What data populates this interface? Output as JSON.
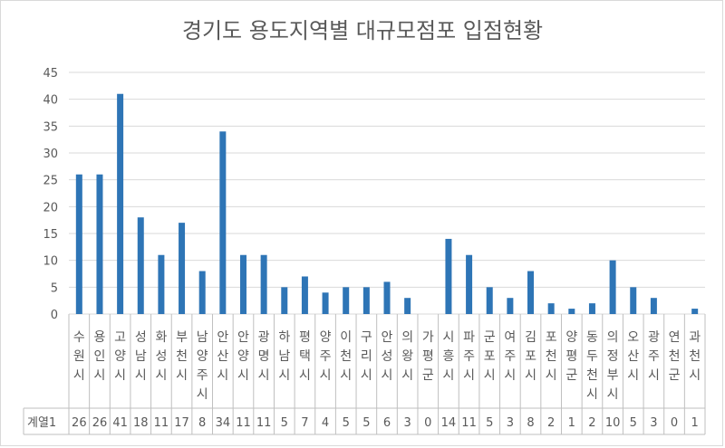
{
  "chart_data": {
    "type": "bar",
    "title": "경기도 용도지역별 대규모점포 입점현황",
    "categories": [
      "수원시",
      "용인시",
      "고양시",
      "성남시",
      "화성시",
      "부천시",
      "남양주시",
      "안산시",
      "안양시",
      "광명시",
      "하남시",
      "평택시",
      "양주시",
      "이천시",
      "구리시",
      "안성시",
      "의왕시",
      "가평군",
      "시흥시",
      "파주시",
      "군포시",
      "여주시",
      "김포시",
      "포천시",
      "양평군",
      "동두천시",
      "의정부시",
      "오산시",
      "광주시",
      "연천군",
      "과천시"
    ],
    "series": [
      {
        "name": "계열1",
        "values": [
          26,
          26,
          41,
          18,
          11,
          17,
          8,
          34,
          11,
          11,
          5,
          7,
          4,
          5,
          5,
          6,
          3,
          0,
          14,
          11,
          5,
          3,
          8,
          2,
          1,
          2,
          10,
          5,
          3,
          0,
          1
        ]
      }
    ],
    "ylim": [
      0,
      45
    ],
    "yticks": [
      0,
      5,
      10,
      15,
      20,
      25,
      30,
      35,
      40,
      45
    ],
    "xlabel": "",
    "ylabel": "",
    "grid": true,
    "legend": "data-table",
    "bar_color": "#2e75b6"
  }
}
